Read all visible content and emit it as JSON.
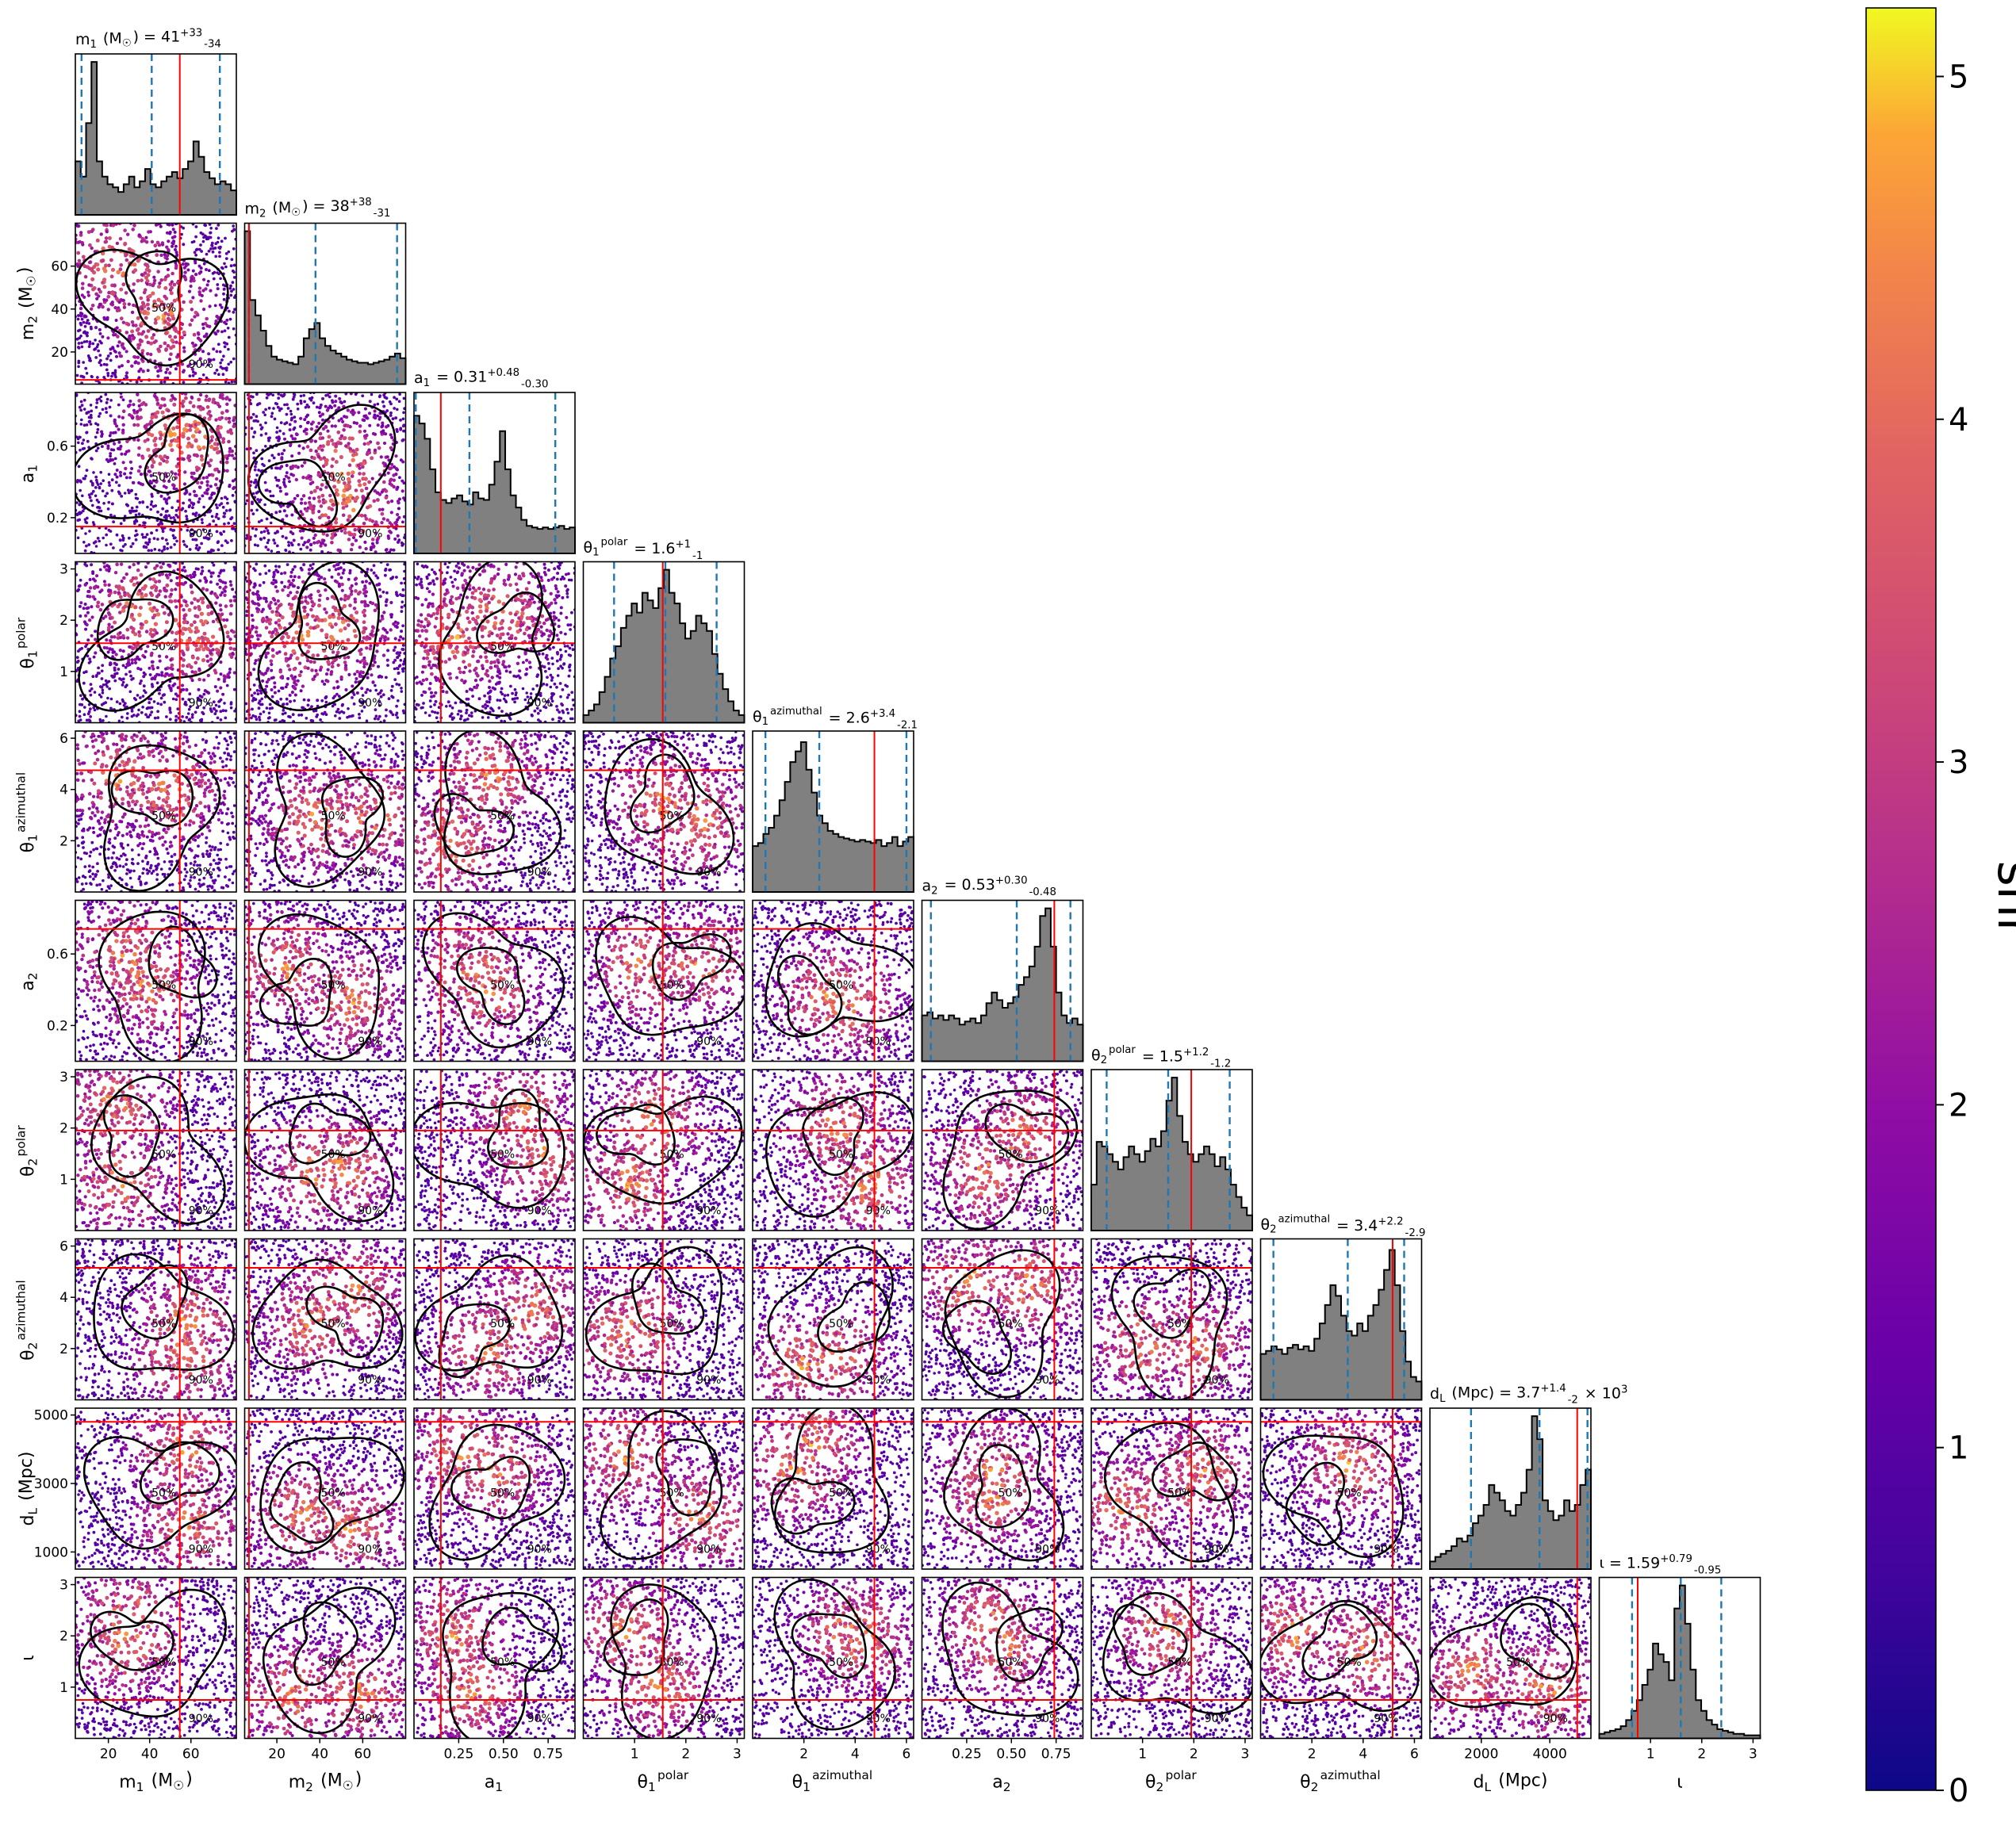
{
  "chart_data": {
    "type": "corner",
    "colorbar": {
      "label": "snr",
      "range": [
        0,
        5.2
      ],
      "ticks": [
        0,
        1,
        2,
        3,
        4,
        5
      ],
      "colormap": "plasma"
    },
    "contour_labels": [
      "50%",
      "90%"
    ],
    "colors": {
      "injection_line": "#ff0000",
      "quantile_line": "#1f77b4",
      "histogram_fill": "#808080",
      "contour": "#000000"
    },
    "parameters": [
      {
        "key": "m1",
        "label": "m_1 (M_☉)",
        "title": "m_1 (M_☉) = 41^{+33}_{-34}",
        "range": [
          4,
          82
        ],
        "ticks": [
          20,
          40,
          60
        ],
        "tick_labels": [
          "20",
          "40",
          "60"
        ],
        "injection": 54.6,
        "quantiles": [
          7,
          41,
          74
        ],
        "hist": [
          0.35,
          0.25,
          0.6,
          1.0,
          0.35,
          0.25,
          0.2,
          0.18,
          0.15,
          0.2,
          0.25,
          0.18,
          0.22,
          0.3,
          0.2,
          0.18,
          0.22,
          0.25,
          0.28,
          0.24,
          0.3,
          0.35,
          0.48,
          0.38,
          0.28,
          0.24,
          0.2,
          0.22,
          0.2,
          0.16
        ]
      },
      {
        "key": "m2",
        "label": "m_2 (M_☉)",
        "title": "m_2 (M_☉) = 38^{+38}_{-31}",
        "range": [
          5,
          80
        ],
        "ticks": [
          20,
          40,
          60
        ],
        "tick_labels": [
          "20",
          "40",
          "60"
        ],
        "injection": 7,
        "quantiles": [
          7,
          38,
          76
        ],
        "hist": [
          1.0,
          0.55,
          0.45,
          0.35,
          0.25,
          0.18,
          0.16,
          0.15,
          0.14,
          0.13,
          0.18,
          0.3,
          0.36,
          0.4,
          0.3,
          0.25,
          0.22,
          0.2,
          0.18,
          0.16,
          0.15,
          0.14,
          0.14,
          0.13,
          0.14,
          0.15,
          0.16,
          0.18,
          0.2,
          0.17
        ]
      },
      {
        "key": "a1",
        "label": "a_1",
        "title": "a_1 = 0.31^{+0.48}_{-0.30}",
        "range": [
          0,
          0.9
        ],
        "ticks": [
          0.25,
          0.5,
          0.75
        ],
        "tick_labels": [
          "0.25",
          "0.50",
          "0.75"
        ],
        "y_ticks": [
          0.2,
          0.6
        ],
        "y_tick_labels": [
          "0.2",
          "0.6"
        ],
        "injection": 0.15,
        "quantiles": [
          0.01,
          0.31,
          0.79
        ],
        "hist": [
          0.9,
          0.85,
          0.75,
          0.55,
          0.4,
          0.35,
          0.33,
          0.36,
          0.38,
          0.34,
          0.32,
          0.4,
          0.36,
          0.35,
          0.45,
          0.6,
          0.8,
          0.55,
          0.38,
          0.3,
          0.22,
          0.18,
          0.17,
          0.16,
          0.17,
          0.16,
          0.17,
          0.18,
          0.16,
          0.17
        ]
      },
      {
        "key": "t1p",
        "label": "θ_1^{polar}",
        "title": "θ_1^{polar} = 1.6^{+1}_{-1}",
        "range": [
          0,
          3.14
        ],
        "ticks": [
          1,
          2,
          3
        ],
        "tick_labels": [
          "1",
          "2",
          "3"
        ],
        "injection": 1.55,
        "quantiles": [
          0.6,
          1.6,
          2.6
        ],
        "hist": [
          0.05,
          0.08,
          0.12,
          0.2,
          0.3,
          0.42,
          0.5,
          0.62,
          0.7,
          0.78,
          0.72,
          0.85,
          0.8,
          0.75,
          0.88,
          1.0,
          0.85,
          0.78,
          0.65,
          0.55,
          0.6,
          0.7,
          0.65,
          0.6,
          0.45,
          0.32,
          0.22,
          0.14,
          0.08,
          0.05
        ]
      },
      {
        "key": "t1a",
        "label": "θ_1^{azimuthal}",
        "title": "θ_1^{azimuthal} = 2.6^{+3.4}_{-2.1}",
        "range": [
          0,
          6.28
        ],
        "ticks": [
          2,
          4,
          6
        ],
        "tick_labels": [
          "2",
          "4",
          "6"
        ],
        "injection": 4.75,
        "quantiles": [
          0.5,
          2.6,
          6.0
        ],
        "hist": [
          0.3,
          0.32,
          0.38,
          0.42,
          0.5,
          0.6,
          0.72,
          0.85,
          0.92,
          0.98,
          0.8,
          0.65,
          0.5,
          0.45,
          0.4,
          0.38,
          0.36,
          0.35,
          0.34,
          0.33,
          0.34,
          0.33,
          0.32,
          0.34,
          0.3,
          0.32,
          0.36,
          0.3,
          0.33,
          0.36
        ]
      },
      {
        "key": "a2",
        "label": "a_2",
        "title": "a_2 = 0.53^{+0.30}_{-0.48}",
        "range": [
          0,
          0.9
        ],
        "ticks": [
          0.25,
          0.5,
          0.75
        ],
        "tick_labels": [
          "0.25",
          "0.50",
          "0.75"
        ],
        "y_ticks": [
          0.2,
          0.6
        ],
        "y_tick_labels": [
          "0.2",
          "0.6"
        ],
        "injection": 0.74,
        "quantiles": [
          0.05,
          0.53,
          0.83
        ],
        "hist": [
          0.3,
          0.32,
          0.28,
          0.3,
          0.27,
          0.3,
          0.28,
          0.24,
          0.26,
          0.28,
          0.25,
          0.3,
          0.38,
          0.45,
          0.4,
          0.35,
          0.38,
          0.42,
          0.5,
          0.55,
          0.62,
          0.75,
          0.95,
          1.0,
          0.75,
          0.45,
          0.3,
          0.25,
          0.28,
          0.24
        ]
      },
      {
        "key": "t2p",
        "label": "θ_2^{polar}",
        "title": "θ_2^{polar} = 1.5^{+1.2}_{-1.2}",
        "range": [
          0,
          3.14
        ],
        "ticks": [
          1,
          2,
          3
        ],
        "tick_labels": [
          "1",
          "2",
          "3"
        ],
        "injection": 1.95,
        "quantiles": [
          0.3,
          1.5,
          2.7
        ],
        "hist": [
          0.3,
          0.58,
          0.55,
          0.5,
          0.45,
          0.4,
          0.48,
          0.55,
          0.5,
          0.45,
          0.52,
          0.6,
          0.55,
          0.65,
          0.85,
          1.0,
          0.75,
          0.58,
          0.5,
          0.45,
          0.5,
          0.55,
          0.5,
          0.42,
          0.48,
          0.4,
          0.3,
          0.22,
          0.15,
          0.1
        ]
      },
      {
        "key": "t2a",
        "label": "θ_2^{azimuthal}",
        "title": "θ_2^{azimuthal} = 3.4^{+2.2}_{-2.9}",
        "range": [
          0,
          6.28
        ],
        "ticks": [
          2,
          4,
          6
        ],
        "tick_labels": [
          "2",
          "4",
          "6"
        ],
        "injection": 5.15,
        "quantiles": [
          0.5,
          3.4,
          5.6
        ],
        "hist": [
          0.3,
          0.32,
          0.35,
          0.33,
          0.3,
          0.34,
          0.36,
          0.33,
          0.35,
          0.32,
          0.4,
          0.5,
          0.62,
          0.75,
          0.68,
          0.55,
          0.45,
          0.42,
          0.5,
          0.45,
          0.55,
          0.62,
          0.72,
          0.85,
          0.98,
          0.75,
          0.45,
          0.25,
          0.15,
          0.12
        ]
      },
      {
        "key": "dL",
        "label": "d_L (Mpc)",
        "title": "d_L (Mpc) = 3.7^{+1.4}_{-2} × 10^3",
        "range": [
          500,
          5200
        ],
        "ticks": [
          2000,
          4000
        ],
        "tick_labels": [
          "2000",
          "4000"
        ],
        "y_ticks": [
          1000,
          3000,
          5000
        ],
        "y_tick_labels": [
          "1000",
          "3000",
          "5000"
        ],
        "injection": 4800,
        "quantiles": [
          1700,
          3700,
          5100
        ],
        "hist": [
          0.05,
          0.08,
          0.1,
          0.12,
          0.15,
          0.2,
          0.18,
          0.22,
          0.3,
          0.35,
          0.42,
          0.55,
          0.5,
          0.45,
          0.38,
          0.35,
          0.42,
          0.5,
          0.65,
          1.0,
          0.85,
          0.45,
          0.38,
          0.32,
          0.35,
          0.45,
          0.38,
          0.42,
          0.55,
          0.65
        ]
      },
      {
        "key": "iota",
        "label": "ι",
        "title": "ι = 1.59^{+0.79}_{-0.95}",
        "range": [
          0,
          3.14
        ],
        "ticks": [
          1,
          2,
          3
        ],
        "tick_labels": [
          "1",
          "2",
          "3"
        ],
        "injection": 0.75,
        "quantiles": [
          0.64,
          1.59,
          2.38
        ],
        "hist": [
          0.03,
          0.04,
          0.05,
          0.06,
          0.08,
          0.12,
          0.18,
          0.25,
          0.35,
          0.45,
          0.62,
          0.55,
          0.5,
          0.38,
          0.85,
          1.0,
          0.75,
          0.45,
          0.25,
          0.18,
          0.12,
          0.09,
          0.06,
          0.05,
          0.04,
          0.03,
          0.03,
          0.02,
          0.02,
          0.02
        ]
      }
    ]
  }
}
